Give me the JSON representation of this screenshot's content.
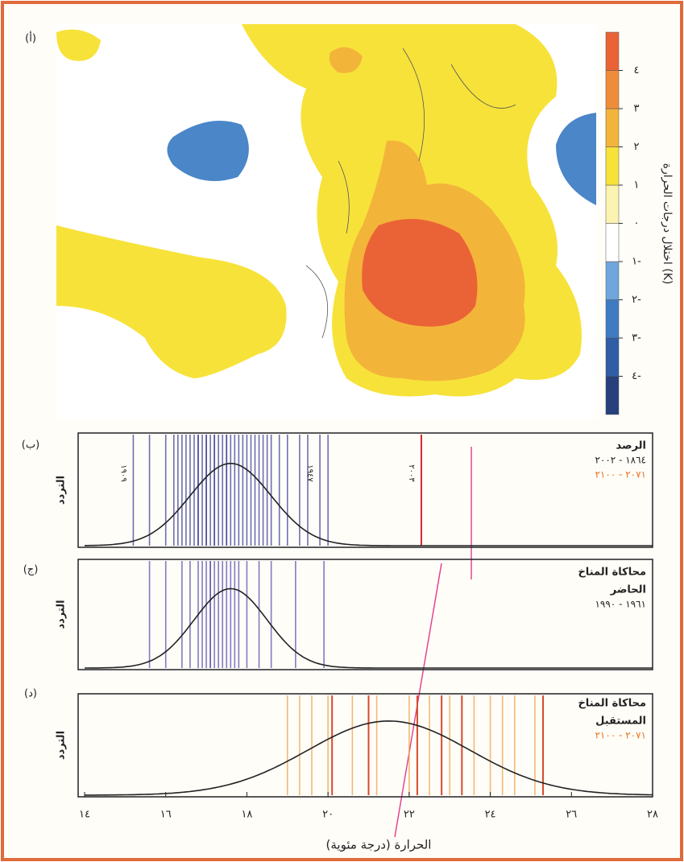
{
  "chart_data": [
    {
      "type": "map",
      "panel_label": "(أ)",
      "colorbar_label": "اختلال درجات الحرارة (K)",
      "ylim": [
        -5,
        5
      ],
      "colors": [
        "#27407c",
        "#2f5da6",
        "#3f7bc3",
        "#6fa6dc",
        "#ffffff",
        "#fbf3b0",
        "#f7e23a",
        "#f3b43a",
        "#ef8c3a",
        "#ea6336"
      ],
      "yticks": [
        {
          "value": 4,
          "label": "٤"
        },
        {
          "value": 3,
          "label": "٣"
        },
        {
          "value": 2,
          "label": "٢"
        },
        {
          "value": 1,
          "label": "١"
        },
        {
          "value": 0,
          "label": "٠"
        },
        {
          "value": -1,
          "label": "١-"
        },
        {
          "value": -2,
          "label": "٢-"
        },
        {
          "value": -3,
          "label": "٣-"
        },
        {
          "value": -4,
          "label": "٤-"
        }
      ]
    },
    {
      "type": "strip",
      "panel_label": "(ب)",
      "ylabel": "التردد",
      "title_lines": [
        "الرصد"
      ],
      "subtitles": [
        {
          "text": "١٨٦٤ - ٢٠٠٢",
          "color": "#222222"
        },
        {
          "text": "٢٠٧١ - ٢١٠٠",
          "color": "#e8741e"
        }
      ],
      "xlim": [
        14,
        28
      ],
      "fit": {
        "mean": 17.6,
        "sd": 1.0
      },
      "series": [
        {
          "color": "#3b3f9c",
          "values": [
            15.2,
            15.6,
            16.0,
            16.2,
            16.3,
            16.4,
            16.5,
            16.6,
            16.7,
            16.8,
            16.8,
            16.9,
            17.0,
            17.0,
            17.1,
            17.2,
            17.2,
            17.3,
            17.4,
            17.5,
            17.5,
            17.6,
            17.7,
            17.8,
            17.9,
            18.0,
            18.1,
            18.2,
            18.3,
            18.4,
            18.5,
            18.6,
            18.8,
            19.0,
            19.3,
            19.5,
            19.8,
            20.0
          ]
        },
        {
          "color": "#d8262a",
          "values": [
            22.3
          ]
        }
      ],
      "annotations": [
        {
          "text": "١٩٠٩",
          "x": 15.2
        },
        {
          "text": "١٩٤٧",
          "x": 19.8
        },
        {
          "text": "٢٠٠٣",
          "x": 22.3
        }
      ]
    },
    {
      "type": "strip",
      "panel_label": "(ج)",
      "ylabel": "التردد",
      "title_lines": [
        "محاكاة المناخ",
        "الحاضر"
      ],
      "subtitles": [
        {
          "text": "١٩٦١ - ١٩٩٠",
          "color": "#222222"
        }
      ],
      "xlim": [
        14,
        28
      ],
      "fit": {
        "mean": 17.6,
        "sd": 0.9
      },
      "series": [
        {
          "color": "#5a4fb0",
          "values": [
            15.6,
            16.0,
            16.4,
            16.6,
            16.8,
            16.9,
            17.0,
            17.1,
            17.1,
            17.2,
            17.3,
            17.4,
            17.5,
            17.6,
            17.7,
            17.8,
            18.0,
            18.3,
            18.6,
            19.2,
            19.9
          ]
        }
      ]
    },
    {
      "type": "strip",
      "panel_label": "(د)",
      "ylabel": "التردد",
      "title_lines": [
        "محاكاة المناخ",
        "المستقبل"
      ],
      "subtitles": [
        {
          "text": "٢٠٧١ - ٢١٠٠",
          "color": "#e8741e"
        }
      ],
      "xlim": [
        14,
        28
      ],
      "fit": {
        "mean": 21.5,
        "sd": 2.0
      },
      "series": [
        {
          "color": "#eea34a",
          "values": [
            19.0,
            19.3,
            19.6,
            20.0,
            20.6,
            21.2,
            22.0,
            22.5,
            23.0,
            23.6,
            24.0,
            24.3,
            24.6,
            25.1
          ]
        },
        {
          "color": "#d84a2a",
          "values": [
            20.1,
            21.0,
            22.2,
            22.8,
            23.3,
            25.3
          ]
        }
      ],
      "xticks": [
        {
          "value": 14,
          "label": "١٤"
        },
        {
          "value": 16,
          "label": "١٦"
        },
        {
          "value": 18,
          "label": "١٨"
        },
        {
          "value": 20,
          "label": "٢٠"
        },
        {
          "value": 22,
          "label": "٢٢"
        },
        {
          "value": 24,
          "label": "٢٤"
        },
        {
          "value": 26,
          "label": "٢٦"
        },
        {
          "value": 28,
          "label": "٢٨"
        }
      ],
      "xlabel": "الحرارة (درجة مئوية)"
    }
  ]
}
